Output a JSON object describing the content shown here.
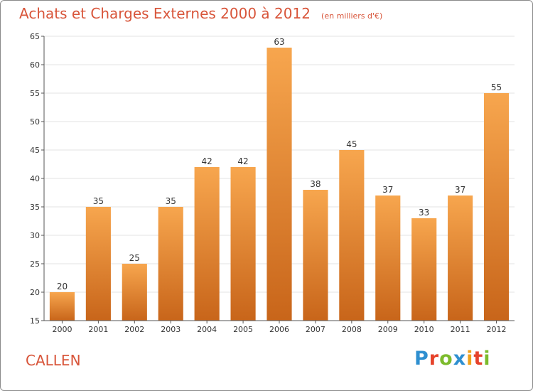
{
  "chart_data": {
    "type": "bar",
    "title": "Achats et Charges Externes 2000 à 2012",
    "subtitle": "(en milliers d'€)",
    "categories": [
      "2000",
      "2001",
      "2002",
      "2003",
      "2004",
      "2005",
      "2006",
      "2007",
      "2008",
      "2009",
      "2010",
      "2011",
      "2012"
    ],
    "values": [
      20,
      35,
      25,
      35,
      42,
      42,
      63,
      38,
      45,
      37,
      33,
      37,
      55
    ],
    "ylim": [
      15,
      65
    ],
    "yticks": [
      15,
      20,
      25,
      30,
      35,
      40,
      45,
      50,
      55,
      60,
      65
    ],
    "grid": true,
    "bar_color_top": "#f7a64e",
    "bar_color_bottom": "#c8651a",
    "axis_color": "#555555",
    "grid_color": "#e3e3e3"
  },
  "commune": "CALLEN",
  "logo": {
    "text": "Proxiti",
    "letter_colors": [
      "#2e8fd0",
      "#e6432b",
      "#7cbb2c",
      "#2e8fd0",
      "#f0a21b",
      "#e6432b",
      "#7cbb2c"
    ]
  }
}
